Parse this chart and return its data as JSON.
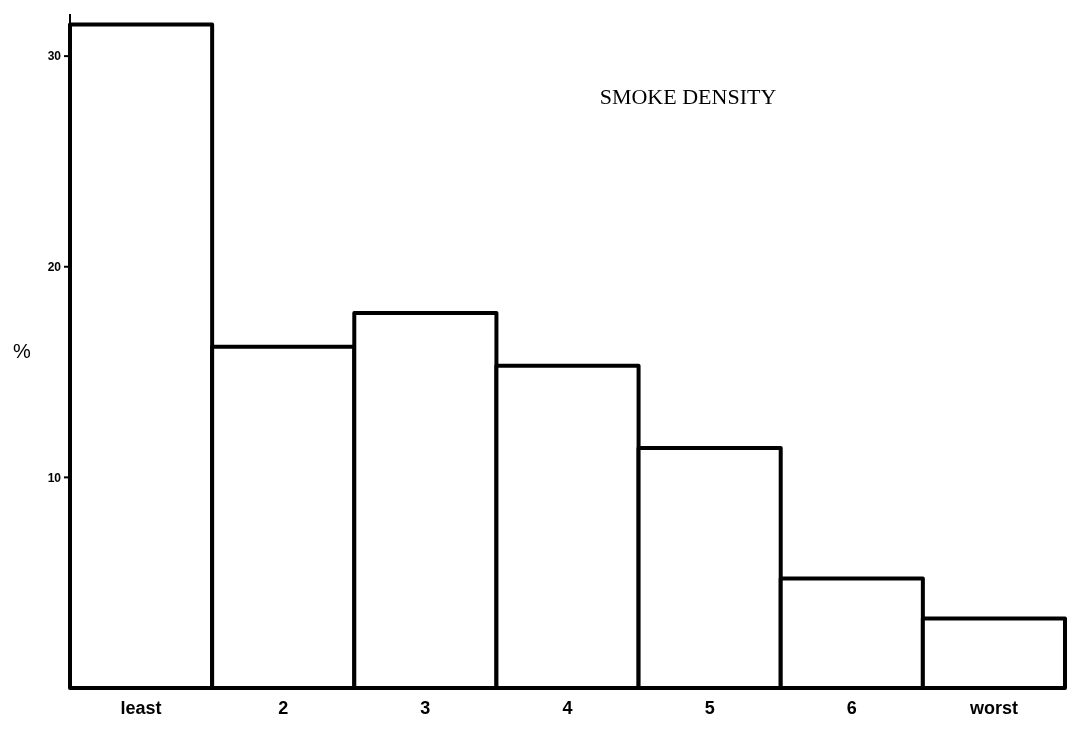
{
  "chart_data": {
    "type": "bar",
    "title": "SMOKE DENSITY",
    "ylabel": "%",
    "categories": [
      "least",
      "2",
      "3",
      "4",
      "5",
      "6",
      "worst"
    ],
    "values": [
      31.5,
      16.2,
      17.8,
      15.3,
      11.4,
      5.2,
      3.3
    ],
    "color": "#ffffff",
    "ylim": [
      0,
      32
    ],
    "yticks": [
      10,
      20,
      30
    ],
    "grid": false
  }
}
